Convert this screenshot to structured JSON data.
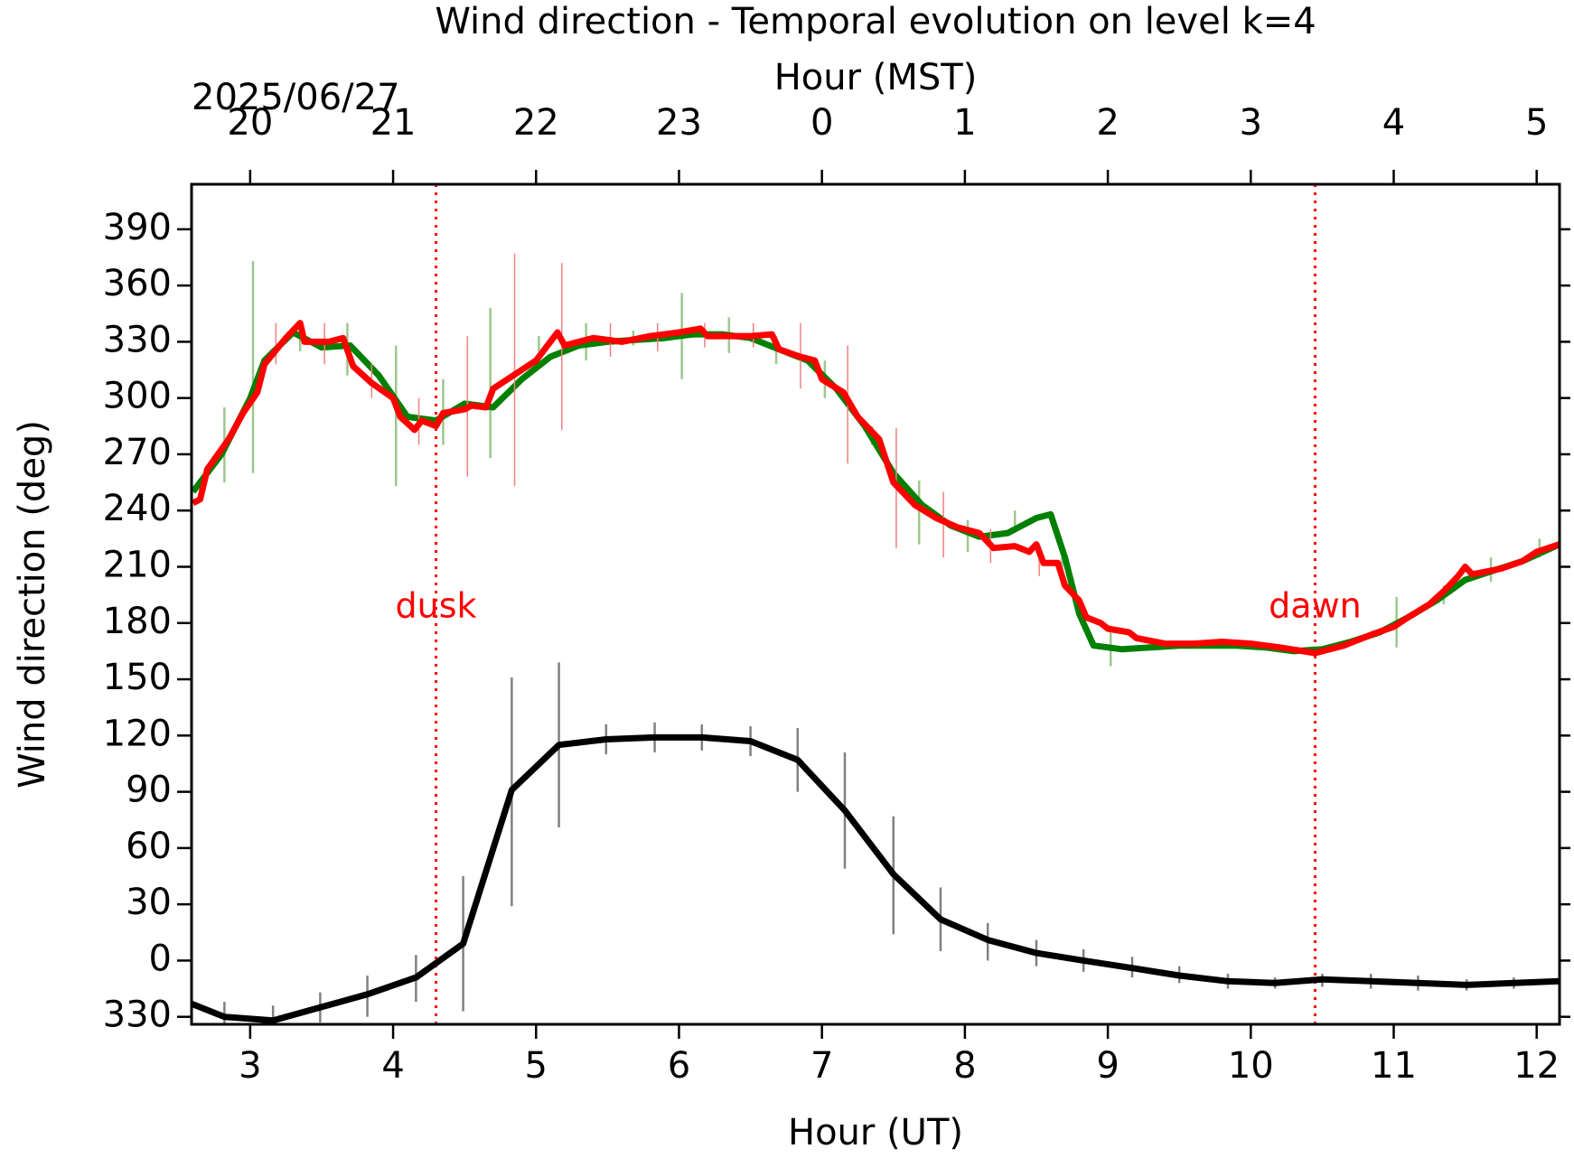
{
  "chart_data": {
    "type": "line",
    "title": "Wind direction - Temporal evolution on level k=4",
    "x2label": "Hour (MST)",
    "date_label": "2025/06/27",
    "xlabel": "Hour (UT)",
    "ylabel": "Wind direction (deg)",
    "xlim": [
      2.59,
      12.16
    ],
    "ylim": [
      -34,
      414
    ],
    "xticks": [
      3,
      4,
      5,
      6,
      7,
      8,
      9,
      10,
      11,
      12
    ],
    "x2ticks": [
      {
        "value": 3,
        "label": "20"
      },
      {
        "value": 4,
        "label": "21"
      },
      {
        "value": 5,
        "label": "22"
      },
      {
        "value": 6,
        "label": "23"
      },
      {
        "value": 7,
        "label": "0"
      },
      {
        "value": 8,
        "label": "1"
      },
      {
        "value": 9,
        "label": "2"
      },
      {
        "value": 10,
        "label": "3"
      },
      {
        "value": 11,
        "label": "4"
      },
      {
        "value": 12,
        "label": "5"
      }
    ],
    "yticks": [
      {
        "value": -30,
        "label": "330"
      },
      0,
      30,
      60,
      90,
      120,
      150,
      180,
      210,
      240,
      270,
      300,
      330,
      360,
      390
    ],
    "vlines": [
      {
        "x": 4.3,
        "label": "dusk",
        "label_y": 188,
        "color": "#ff0000"
      },
      {
        "x": 10.45,
        "label": "dawn",
        "label_y": 188,
        "color": "#ff0000"
      }
    ],
    "series": [
      {
        "color": "#008000",
        "x": [
          2.6,
          2.8,
          3.0,
          3.1,
          3.3,
          3.5,
          3.7,
          3.9,
          4.1,
          4.3,
          4.5,
          4.7,
          4.9,
          5.1,
          5.3,
          5.5,
          5.7,
          5.9,
          6.1,
          6.3,
          6.5,
          6.7,
          6.9,
          7.1,
          7.3,
          7.5,
          7.7,
          7.9,
          8.1,
          8.3,
          8.5,
          8.6,
          8.7,
          8.8,
          8.9,
          9.1,
          9.3,
          9.5,
          9.7,
          9.9,
          10.1,
          10.3,
          10.5,
          10.7,
          10.9,
          11.1,
          11.3,
          11.5,
          11.7,
          11.9,
          12.16
        ],
        "values": [
          250,
          270,
          300,
          320,
          335,
          327,
          328,
          312,
          290,
          288,
          297,
          295,
          310,
          322,
          328,
          330,
          331,
          332,
          334,
          334,
          332,
          326,
          320,
          305,
          285,
          260,
          243,
          232,
          226,
          228,
          236,
          238,
          215,
          185,
          168,
          166,
          167,
          168,
          168,
          168,
          167,
          165,
          166,
          170,
          175,
          183,
          192,
          203,
          208,
          213,
          222
        ],
        "error_bars": {
          "color": "#9cc88c",
          "x": [
            2.82,
            3.02,
            3.35,
            3.68,
            4.02,
            4.35,
            4.68,
            5.02,
            5.35,
            5.68,
            6.02,
            6.35,
            6.68,
            7.02,
            7.35,
            7.68,
            8.02,
            8.35,
            8.68,
            9.02,
            11.02,
            11.35,
            11.68,
            12.02
          ],
          "low": [
            255,
            260,
            325,
            312,
            253,
            275,
            268,
            325,
            320,
            328,
            310,
            324,
            318,
            300,
            275,
            222,
            218,
            230,
            200,
            157,
            167,
            190,
            202,
            215
          ],
          "high": [
            295,
            373,
            340,
            340,
            328,
            310,
            348,
            333,
            340,
            336,
            356,
            343,
            333,
            320,
            285,
            256,
            235,
            240,
            215,
            175,
            194,
            200,
            215,
            225
          ]
        }
      },
      {
        "color": "#ff0000",
        "x": [
          2.6,
          2.65,
          2.7,
          2.85,
          2.95,
          3.05,
          3.1,
          3.25,
          3.35,
          3.38,
          3.55,
          3.65,
          3.72,
          3.85,
          4.0,
          4.05,
          4.15,
          4.2,
          4.3,
          4.35,
          4.5,
          4.55,
          4.65,
          4.7,
          4.9,
          5.0,
          5.15,
          5.2,
          5.4,
          5.6,
          5.8,
          6.0,
          6.15,
          6.2,
          6.5,
          6.65,
          6.7,
          6.85,
          6.95,
          7.0,
          7.15,
          7.25,
          7.4,
          7.5,
          7.65,
          7.8,
          7.95,
          8.1,
          8.2,
          8.35,
          8.45,
          8.5,
          8.55,
          8.65,
          8.7,
          8.8,
          8.85,
          8.95,
          9.0,
          9.15,
          9.2,
          9.4,
          9.6,
          9.8,
          10.0,
          10.2,
          10.45,
          10.65,
          10.85,
          11.0,
          11.1,
          11.25,
          11.35,
          11.45,
          11.5,
          11.55,
          11.75,
          11.9,
          12.0,
          12.16
        ],
        "values": [
          244,
          246,
          262,
          278,
          292,
          303,
          318,
          332,
          340,
          330,
          330,
          332,
          317,
          308,
          300,
          290,
          283,
          288,
          285,
          292,
          294,
          296,
          295,
          305,
          315,
          320,
          335,
          328,
          332,
          330,
          333,
          335,
          337,
          333,
          333,
          334,
          326,
          322,
          320,
          310,
          303,
          290,
          278,
          255,
          243,
          236,
          231,
          228,
          220,
          221,
          218,
          222,
          212,
          212,
          200,
          192,
          183,
          180,
          177,
          175,
          172,
          169,
          169,
          170,
          169,
          167,
          164,
          168,
          174,
          178,
          183,
          190,
          197,
          205,
          210,
          206,
          209,
          213,
          218,
          222
        ],
        "error_bars": {
          "color": "#f08080",
          "x": [
            3.18,
            3.52,
            3.85,
            4.18,
            4.52,
            4.85,
            5.18,
            5.52,
            5.85,
            6.18,
            6.52,
            6.85,
            7.18,
            7.52,
            7.85,
            8.18,
            8.52
          ],
          "low": [
            318,
            318,
            300,
            275,
            258,
            253,
            283,
            322,
            325,
            327,
            327,
            305,
            265,
            220,
            215,
            212,
            205
          ],
          "high": [
            340,
            340,
            318,
            300,
            333,
            377,
            372,
            340,
            340,
            340,
            340,
            340,
            328,
            284,
            250,
            230,
            222
          ]
        }
      },
      {
        "color": "#000000",
        "x": [
          2.59,
          2.82,
          3.16,
          3.49,
          3.82,
          4.16,
          4.49,
          4.83,
          5.16,
          5.49,
          5.83,
          6.16,
          6.5,
          6.83,
          7.16,
          7.5,
          7.83,
          8.16,
          8.5,
          8.83,
          9.17,
          9.5,
          9.84,
          10.17,
          10.5,
          10.84,
          11.17,
          11.51,
          11.84,
          12.16
        ],
        "values": [
          -23,
          -30,
          -32,
          -25,
          -18,
          -9,
          9,
          91,
          115,
          118,
          119,
          119,
          117,
          107,
          80,
          46,
          22,
          11,
          4,
          0,
          -4,
          -8,
          -11,
          -12,
          -10,
          -11,
          -12,
          -13,
          -12,
          -11
        ],
        "error_bars": {
          "color": "#808080",
          "x": [
            2.82,
            3.16,
            3.49,
            3.82,
            4.16,
            4.49,
            4.83,
            5.16,
            5.49,
            5.83,
            6.16,
            6.5,
            6.83,
            7.16,
            7.5,
            7.83,
            8.16,
            8.5,
            8.83,
            9.17,
            9.5,
            9.84,
            10.17,
            10.5,
            10.84,
            11.17,
            11.51,
            11.84
          ],
          "low": [
            -38,
            -40,
            -33,
            -30,
            -22,
            -27,
            29,
            71,
            110,
            111,
            112,
            109,
            90,
            49,
            14,
            5,
            0,
            -3,
            -6,
            -9,
            -12,
            -15,
            -15,
            -14,
            -15,
            -16,
            -16,
            -15
          ],
          "high": [
            -22,
            -24,
            -17,
            -8,
            3,
            45,
            151,
            159,
            126,
            127,
            126,
            125,
            124,
            111,
            77,
            39,
            20,
            11,
            6,
            2,
            -3,
            -7,
            -9,
            -7,
            -7,
            -8,
            -10,
            -9
          ]
        }
      }
    ]
  }
}
